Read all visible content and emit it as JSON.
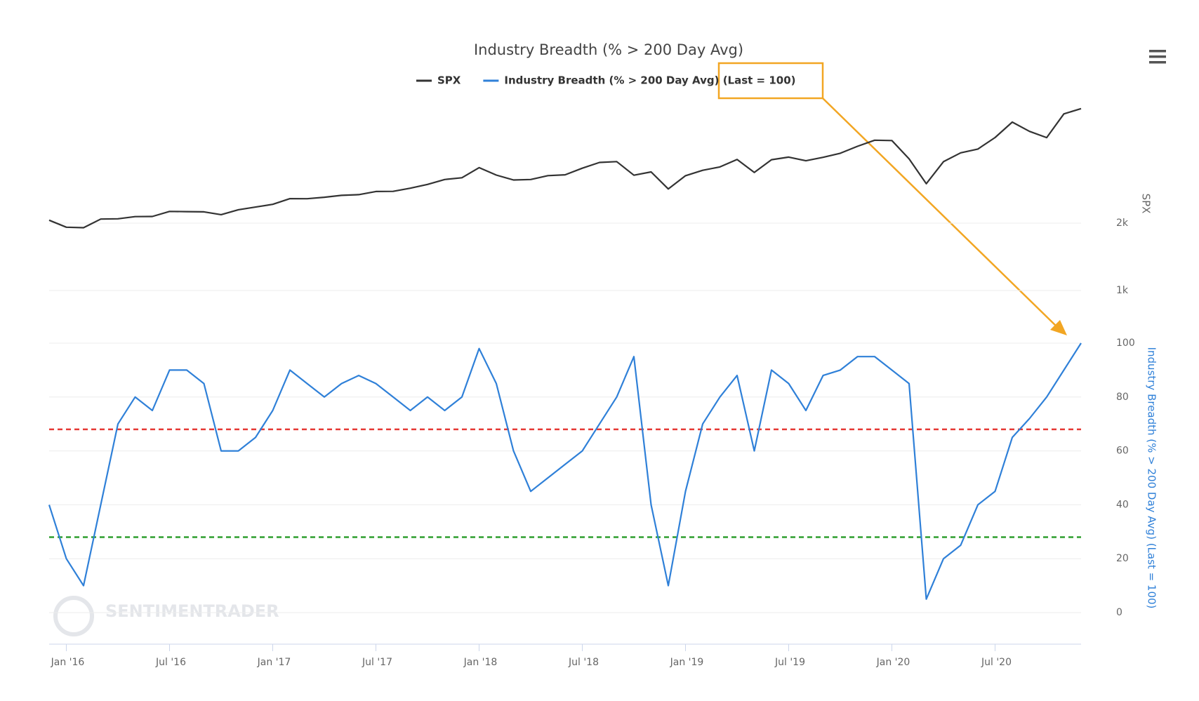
{
  "chart_data": {
    "type": "line",
    "title": "Industry Breadth (% > 200 Day Avg)",
    "x": [
      "2015-12",
      "2016-01",
      "2016-02",
      "2016-03",
      "2016-04",
      "2016-05",
      "2016-06",
      "2016-07",
      "2016-08",
      "2016-09",
      "2016-10",
      "2016-11",
      "2016-12",
      "2017-01",
      "2017-02",
      "2017-03",
      "2017-04",
      "2017-05",
      "2017-06",
      "2017-07",
      "2017-08",
      "2017-09",
      "2017-10",
      "2017-11",
      "2017-12",
      "2018-01",
      "2018-02",
      "2018-03",
      "2018-04",
      "2018-05",
      "2018-06",
      "2018-07",
      "2018-08",
      "2018-09",
      "2018-10",
      "2018-11",
      "2018-12",
      "2019-01",
      "2019-02",
      "2019-03",
      "2019-04",
      "2019-05",
      "2019-06",
      "2019-07",
      "2019-08",
      "2019-09",
      "2019-10",
      "2019-11",
      "2019-12",
      "2020-01",
      "2020-02",
      "2020-03",
      "2020-04",
      "2020-05",
      "2020-06",
      "2020-07",
      "2020-08",
      "2020-09",
      "2020-10",
      "2020-11",
      "2020-12"
    ],
    "xlim": [
      "2015-12",
      "2020-12"
    ],
    "xticks": [
      {
        "value": "2016-01",
        "label": "Jan '16"
      },
      {
        "value": "2016-07",
        "label": "Jul '16"
      },
      {
        "value": "2017-01",
        "label": "Jan '17"
      },
      {
        "value": "2017-07",
        "label": "Jul '17"
      },
      {
        "value": "2018-01",
        "label": "Jan '18"
      },
      {
        "value": "2018-07",
        "label": "Jul '18"
      },
      {
        "value": "2019-01",
        "label": "Jan '19"
      },
      {
        "value": "2019-07",
        "label": "Jul '19"
      },
      {
        "value": "2020-01",
        "label": "Jan '20"
      },
      {
        "value": "2020-07",
        "label": "Jul '20"
      }
    ],
    "series": [
      {
        "name": "SPX",
        "color": "#333333",
        "axis": "y",
        "values": [
          2044,
          1940,
          1932,
          2060,
          2065,
          2097,
          2099,
          2174,
          2171,
          2168,
          2126,
          2199,
          2239,
          2279,
          2364,
          2363,
          2384,
          2412,
          2423,
          2470,
          2472,
          2519,
          2575,
          2648,
          2674,
          2824,
          2714,
          2641,
          2648,
          2705,
          2718,
          2816,
          2901,
          2914,
          2711,
          2760,
          2507,
          2704,
          2784,
          2834,
          2946,
          2752,
          2942,
          2980,
          2926,
          2977,
          3038,
          3141,
          3231,
          3226,
          2954,
          2585,
          2912,
          3044,
          3100,
          3271,
          3500,
          3363,
          3270,
          3622,
          3700
        ]
      },
      {
        "name": "Industry Breadth (% > 200 Day Avg) (Last = 100)",
        "color": "#2f80d8",
        "axis": "y2",
        "values": [
          40,
          20,
          10,
          40,
          70,
          80,
          75,
          90,
          90,
          85,
          60,
          60,
          65,
          75,
          90,
          85,
          80,
          85,
          88,
          85,
          80,
          75,
          80,
          75,
          80,
          98,
          85,
          60,
          45,
          50,
          55,
          60,
          70,
          80,
          95,
          40,
          10,
          45,
          70,
          80,
          88,
          60,
          90,
          85,
          75,
          88,
          90,
          95,
          95,
          90,
          85,
          5,
          20,
          25,
          40,
          45,
          65,
          72,
          80,
          90,
          100
        ]
      }
    ],
    "ylabel": "SPX",
    "ylim": [
      1000,
      4000
    ],
    "yticks": [
      {
        "value": 1000,
        "label": "1k"
      },
      {
        "value": 2000,
        "label": "2k"
      }
    ],
    "y2label": "Industry Breadth (% > 200 Day Avg) (Last = 100)",
    "y2lim": [
      0,
      100
    ],
    "y2ticks": [
      0,
      20,
      40,
      60,
      80,
      100
    ],
    "reference_lines": [
      {
        "axis": "y2",
        "value": 68,
        "color": "#e53935"
      },
      {
        "axis": "y2",
        "value": 28,
        "color": "#2e9e2e"
      }
    ],
    "grid": true,
    "legend": "top",
    "watermark": "SENTIMENTRADER"
  }
}
